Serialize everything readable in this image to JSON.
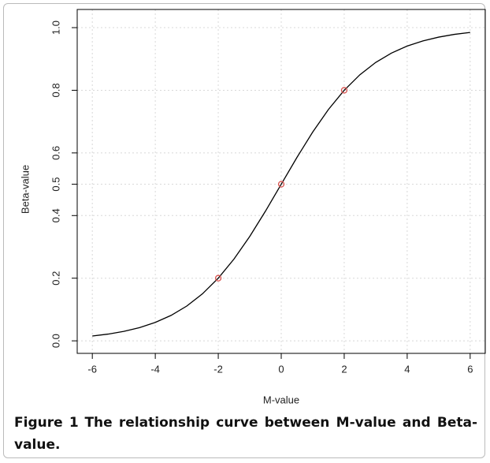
{
  "chart_data": {
    "type": "line",
    "xlabel": "M-value",
    "ylabel": "Beta-value",
    "xlim": [
      -6.48,
      6.48
    ],
    "ylim": [
      -0.04,
      1.058
    ],
    "xticks": [
      -6,
      -4,
      -2,
      0,
      2,
      4,
      6
    ],
    "yticks": [
      {
        "value": 0,
        "label": "0.0"
      },
      0.2,
      0.4,
      0.5,
      0.6,
      0.8,
      {
        "value": 1,
        "label": "1.0"
      }
    ],
    "grid": true,
    "series": [
      {
        "type": "line",
        "color": "#000000",
        "x": [
          -6,
          -5.5,
          -5,
          -4.5,
          -4,
          -3.5,
          -3,
          -2.5,
          -2,
          -1.5,
          -1,
          -0.5,
          0,
          0.5,
          1,
          1.5,
          2,
          2.5,
          3,
          3.5,
          4,
          4.5,
          5,
          5.5,
          6
        ],
        "values": [
          0.0154,
          0.0215,
          0.0303,
          0.0423,
          0.0588,
          0.0812,
          0.1111,
          0.1503,
          0.2,
          0.2612,
          0.3333,
          0.4142,
          0.5,
          0.5858,
          0.6667,
          0.7388,
          0.8,
          0.8497,
          0.8889,
          0.9188,
          0.9412,
          0.9577,
          0.9697,
          0.9785,
          0.9846
        ]
      },
      {
        "type": "scatter",
        "color": "#d9534f",
        "x": [
          -2,
          0,
          2
        ],
        "values": [
          0.2,
          0.5,
          0.8
        ]
      }
    ]
  },
  "caption": {
    "label": "Figure 1",
    "text": "The relationship curve between M-value and Beta-value."
  }
}
